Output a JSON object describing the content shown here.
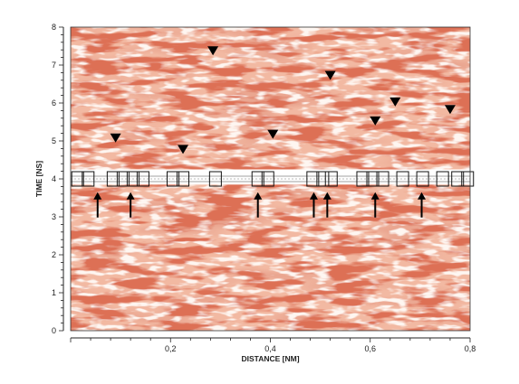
{
  "chart_data": {
    "type": "heatmap",
    "title": "",
    "xlabel": "DISTANCE [NM]",
    "ylabel": "TIME [NS]",
    "xlim": [
      0,
      0.8
    ],
    "ylim": [
      0,
      8
    ],
    "x_ticks": [
      0.2,
      0.4,
      0.6,
      0.8
    ],
    "x_tick_labels": [
      "0,2",
      "0,4",
      "0,6",
      "0,8"
    ],
    "y_ticks": [
      0,
      1,
      2,
      3,
      4,
      5,
      6,
      7,
      8
    ],
    "y_tick_labels": [
      "0",
      "1",
      "2",
      "3",
      "4",
      "5",
      "6",
      "7",
      "8"
    ],
    "grid": false,
    "colors": {
      "background": "#f2b9a2",
      "texture_dark": "#b5311d",
      "texture_mid": "#d9705a",
      "texture_light": "#fbe3d9",
      "marker": "#000000",
      "band": "#ffffff"
    },
    "band_time_range": [
      3.85,
      4.25
    ],
    "band_center_time": 4.0,
    "boxes_distance": [
      0.014,
      0.035,
      0.085,
      0.105,
      0.125,
      0.145,
      0.205,
      0.225,
      0.29,
      0.375,
      0.395,
      0.485,
      0.505,
      0.522,
      0.585,
      0.605,
      0.625,
      0.665,
      0.705,
      0.745,
      0.775,
      0.795
    ],
    "arrows": [
      {
        "x": 0.054,
        "y": 3.65
      },
      {
        "x": 0.12,
        "y": 3.65
      },
      {
        "x": 0.375,
        "y": 3.65
      },
      {
        "x": 0.487,
        "y": 3.65
      },
      {
        "x": 0.514,
        "y": 3.65
      },
      {
        "x": 0.61,
        "y": 3.65
      },
      {
        "x": 0.703,
        "y": 3.65
      }
    ],
    "triangles": [
      {
        "x": 0.09,
        "y": 5.1
      },
      {
        "x": 0.225,
        "y": 4.8
      },
      {
        "x": 0.285,
        "y": 7.4
      },
      {
        "x": 0.405,
        "y": 5.2
      },
      {
        "x": 0.52,
        "y": 6.75
      },
      {
        "x": 0.61,
        "y": 5.55
      },
      {
        "x": 0.65,
        "y": 6.05
      },
      {
        "x": 0.76,
        "y": 5.85
      }
    ]
  }
}
